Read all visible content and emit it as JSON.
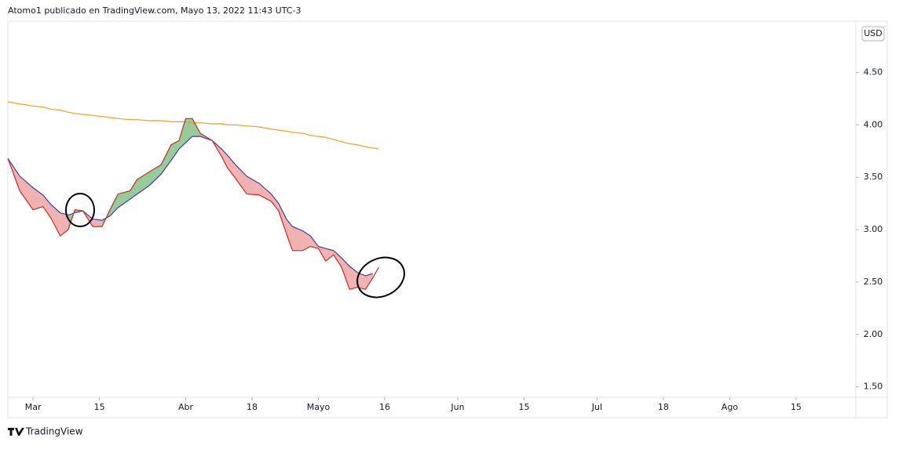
{
  "header": {
    "publisher": "Atomo1 publicado en TradingView.com, Mayo 13, 2022 11:43 UTC-3"
  },
  "footer": {
    "brand": "TradingView"
  },
  "chart_data": {
    "type": "line",
    "currency": "USD",
    "x": [
      -3.8,
      -2.0,
      0,
      1.5,
      2.7,
      4.1,
      5.3,
      6.3,
      7.5,
      9.0,
      10.4,
      11.6,
      12.8,
      14.6,
      15.7,
      17.5,
      19.3,
      20.8,
      22.0,
      23.0,
      24.0,
      25.2,
      27.0,
      28.4,
      29.3,
      30.5,
      32.2,
      34.1,
      35.9,
      37.0,
      38.2,
      39.1,
      40.6,
      41.8,
      43.0,
      44.1,
      45.3,
      46.5,
      47.7,
      48.9,
      50.1,
      51.2,
      52.1
    ],
    "series": [
      {
        "color": "#c62828",
        "values": [
          3.68,
          3.37,
          3.19,
          3.22,
          3.11,
          2.94,
          3.0,
          3.19,
          3.18,
          3.03,
          3.03,
          3.19,
          3.34,
          3.37,
          3.48,
          3.55,
          3.62,
          3.81,
          3.85,
          4.06,
          4.06,
          3.92,
          3.85,
          3.7,
          3.59,
          3.49,
          3.34,
          3.33,
          3.27,
          3.18,
          2.96,
          2.8,
          2.8,
          2.84,
          2.82,
          2.7,
          2.76,
          2.64,
          2.43,
          2.45,
          2.43,
          2.54,
          2.64
        ]
      },
      {
        "color": "#3d3d9e",
        "values": [
          3.68,
          3.51,
          3.4,
          3.33,
          3.24,
          3.16,
          3.14,
          3.16,
          3.18,
          3.1,
          3.09,
          3.13,
          3.21,
          3.29,
          3.34,
          3.42,
          3.53,
          3.66,
          3.77,
          3.83,
          3.89,
          3.89,
          3.85,
          3.77,
          3.71,
          3.62,
          3.51,
          3.44,
          3.34,
          3.25,
          3.1,
          3.03,
          2.99,
          2.94,
          2.84,
          2.82,
          2.8,
          2.73,
          2.65,
          2.59,
          2.56,
          2.58,
          null
        ]
      },
      {
        "color": "#f59b23",
        "values": [
          4.22,
          4.2,
          4.18,
          4.17,
          4.15,
          4.14,
          4.12,
          4.11,
          4.1,
          4.09,
          4.08,
          4.07,
          4.06,
          4.05,
          4.05,
          4.04,
          4.04,
          4.03,
          4.03,
          4.03,
          4.02,
          4.02,
          4.01,
          4.01,
          4.0,
          4.0,
          3.99,
          3.98,
          3.96,
          3.95,
          3.94,
          3.93,
          3.92,
          3.9,
          3.89,
          3.88,
          3.86,
          3.84,
          3.82,
          3.81,
          3.79,
          3.78,
          3.77
        ]
      }
    ],
    "band_colors": [
      "#43a047",
      "#e57373"
    ],
    "xlim": [
      -3.8,
      124
    ],
    "xticks": [
      {
        "value": 0,
        "label": "Mar"
      },
      {
        "value": 10,
        "label": "15"
      },
      {
        "value": 23,
        "label": "Abr"
      },
      {
        "value": 33,
        "label": "18"
      },
      {
        "value": 43,
        "label": "Mayo"
      },
      {
        "value": 53,
        "label": "16"
      },
      {
        "value": 64,
        "label": "Jun"
      },
      {
        "value": 74,
        "label": "15"
      },
      {
        "value": 85,
        "label": "Jul"
      },
      {
        "value": 95,
        "label": "18"
      },
      {
        "value": 105,
        "label": "Ago"
      },
      {
        "value": 115,
        "label": "15"
      }
    ],
    "ylim": [
      1.4,
      4.99
    ],
    "yticks": [
      {
        "value": 1.5,
        "label": "1.50"
      },
      {
        "value": 2,
        "label": "2.00"
      },
      {
        "value": 2.5,
        "label": "2.50"
      },
      {
        "value": 3,
        "label": "3.00"
      },
      {
        "value": 3.5,
        "label": "3.50"
      },
      {
        "value": 4,
        "label": "4.00"
      },
      {
        "value": 4.5,
        "label": "4.50"
      }
    ]
  }
}
